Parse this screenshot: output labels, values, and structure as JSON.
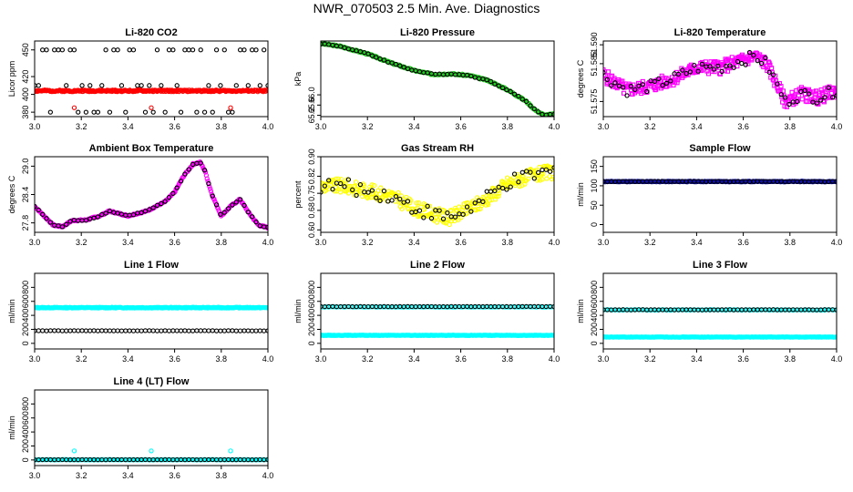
{
  "figure_title": "NWR_070503  2.5 Min. Ave. Diagnostics",
  "colors": {
    "black": "#000000",
    "red": "#ff0000",
    "green": "#22cc22",
    "magenta": "#ff00ff",
    "yellow": "#ffff00",
    "blue": "#1010aa",
    "cyan": "#00ffff"
  },
  "chart_data": [
    {
      "type": "scatter",
      "title": "Li-820 CO2",
      "ylabel": "Licor ppm",
      "xlim": [
        3.0,
        4.0
      ],
      "ylim": [
        375,
        460
      ],
      "xticks": [
        "3.0",
        "3.2",
        "3.4",
        "3.6",
        "3.8",
        "4.0"
      ],
      "yticks": [
        "380",
        "400",
        "420",
        "450"
      ],
      "series": [
        {
          "name": "primary",
          "color": "#000000",
          "shape": "circle",
          "mode": "spikes",
          "levels": [
            380,
            410,
            450
          ],
          "count": 60,
          "seed": 1
        },
        {
          "name": "secondary",
          "color": "#ff0000",
          "shape": "circle",
          "mode": "dense",
          "base": 404,
          "noise": 1.0,
          "count": 300,
          "seed": 2
        },
        {
          "name": "secondary-spikes",
          "color": "#ff0000",
          "shape": "circle",
          "mode": "points",
          "x": [
            3.17,
            3.5,
            3.84
          ],
          "y": [
            385,
            385,
            385
          ]
        }
      ]
    },
    {
      "type": "scatter",
      "title": "Li-820 Pressure",
      "ylabel": "kPa",
      "xlim": [
        3.0,
        4.0
      ],
      "ylim": [
        65.15,
        68.1
      ],
      "xticks": [
        "3.0",
        "3.2",
        "3.4",
        "3.6",
        "3.8",
        "4.0"
      ],
      "yticks": [
        "65.2",
        "65.6",
        "66.0"
      ],
      "series": [
        {
          "name": "secondary",
          "color": "#22cc22",
          "shape": "circle",
          "mode": "curve",
          "kx": [
            3.0,
            3.08,
            3.2,
            3.3,
            3.4,
            3.48,
            3.56,
            3.64,
            3.72,
            3.8,
            3.88,
            3.92,
            3.96,
            4.0
          ],
          "ky": [
            68.0,
            67.9,
            67.6,
            67.25,
            66.95,
            66.8,
            66.82,
            66.75,
            66.55,
            66.2,
            65.75,
            65.4,
            65.2,
            65.25
          ],
          "noise": 0.03,
          "count": 260,
          "seed": 3
        },
        {
          "name": "primary",
          "color": "#000000",
          "shape": "circle",
          "mode": "curve",
          "kx": [
            3.0,
            3.08,
            3.2,
            3.3,
            3.4,
            3.48,
            3.56,
            3.64,
            3.72,
            3.8,
            3.88,
            3.92,
            3.96,
            4.0
          ],
          "ky": [
            68.0,
            67.9,
            67.6,
            67.25,
            66.95,
            66.8,
            66.82,
            66.75,
            66.55,
            66.2,
            65.75,
            65.4,
            65.2,
            65.25
          ],
          "noise": 0.02,
          "count": 60,
          "seed": 4
        }
      ]
    },
    {
      "type": "scatter",
      "title": "Li-820 Temperature",
      "ylabel": "degrees C",
      "xlim": [
        3.0,
        4.0
      ],
      "ylim": [
        51.571,
        51.591
      ],
      "xticks": [
        "3.0",
        "3.2",
        "3.4",
        "3.6",
        "3.8",
        "4.0"
      ],
      "yticks": [
        "51.575",
        "51.585",
        "51.590"
      ],
      "series": [
        {
          "name": "secondary",
          "color": "#ff00ff",
          "shape": "square",
          "mode": "curve",
          "kx": [
            3.0,
            3.1,
            3.2,
            3.3,
            3.4,
            3.5,
            3.6,
            3.65,
            3.7,
            3.78,
            3.85,
            3.92,
            4.0
          ],
          "ky": [
            51.582,
            51.578,
            51.579,
            51.581,
            51.584,
            51.584,
            51.586,
            51.587,
            51.585,
            51.575,
            51.577,
            51.576,
            51.578
          ],
          "noise": 0.0018,
          "count": 320,
          "seed": 5
        },
        {
          "name": "primary",
          "color": "#000000",
          "shape": "circle",
          "mode": "curve",
          "kx": [
            3.0,
            3.1,
            3.2,
            3.3,
            3.4,
            3.5,
            3.6,
            3.65,
            3.7,
            3.78,
            3.85,
            3.92,
            4.0
          ],
          "ky": [
            51.582,
            51.578,
            51.579,
            51.581,
            51.584,
            51.584,
            51.586,
            51.587,
            51.585,
            51.575,
            51.577,
            51.576,
            51.578
          ],
          "noise": 0.0015,
          "count": 60,
          "seed": 6
        }
      ]
    },
    {
      "type": "scatter",
      "title": "Ambient Box Temperature",
      "ylabel": "degrees C",
      "xlim": [
        3.0,
        4.0
      ],
      "ylim": [
        27.6,
        29.2
      ],
      "xticks": [
        "3.0",
        "3.2",
        "3.4",
        "3.6",
        "3.8",
        "4.0"
      ],
      "yticks": [
        "27.8",
        "28.4",
        "29.0"
      ],
      "series": [
        {
          "name": "secondary",
          "color": "#ff00ff",
          "shape": "circle",
          "mode": "curve",
          "kx": [
            3.0,
            3.03,
            3.08,
            3.12,
            3.16,
            3.22,
            3.28,
            3.32,
            3.36,
            3.4,
            3.48,
            3.56,
            3.6,
            3.64,
            3.68,
            3.71,
            3.73,
            3.76,
            3.8,
            3.84,
            3.88,
            3.92,
            3.96,
            4.0
          ],
          "ky": [
            28.15,
            28.0,
            27.75,
            27.72,
            27.85,
            27.86,
            27.95,
            28.05,
            28.0,
            27.95,
            28.05,
            28.25,
            28.45,
            28.8,
            29.05,
            29.08,
            28.9,
            28.4,
            27.95,
            28.15,
            28.3,
            28.0,
            27.75,
            27.7
          ],
          "noise": 0.015,
          "count": 300,
          "seed": 7
        },
        {
          "name": "primary",
          "color": "#000000",
          "shape": "circle",
          "mode": "curve",
          "kx": [
            3.0,
            3.03,
            3.08,
            3.12,
            3.16,
            3.22,
            3.28,
            3.32,
            3.36,
            3.4,
            3.48,
            3.56,
            3.6,
            3.64,
            3.68,
            3.71,
            3.73,
            3.76,
            3.8,
            3.84,
            3.88,
            3.92,
            3.96,
            4.0
          ],
          "ky": [
            28.15,
            28.0,
            27.75,
            27.72,
            27.85,
            27.86,
            27.95,
            28.05,
            28.0,
            27.95,
            28.05,
            28.25,
            28.45,
            28.8,
            29.05,
            29.08,
            28.9,
            28.4,
            27.95,
            28.15,
            28.3,
            28.0,
            27.75,
            27.7
          ],
          "noise": 0.01,
          "count": 60,
          "seed": 8
        }
      ]
    },
    {
      "type": "scatter",
      "title": "Gas Stream RH",
      "ylabel": "percent",
      "xlim": [
        3.0,
        4.0
      ],
      "ylim": [
        0.59,
        0.9
      ],
      "xticks": [
        "3.0",
        "3.2",
        "3.4",
        "3.6",
        "3.8",
        "4.0"
      ],
      "yticks": [
        "0.60",
        "0.68",
        "0.75",
        "0.82",
        "0.90"
      ],
      "series": [
        {
          "name": "secondary",
          "color": "#ffff00",
          "shape": "circle",
          "mode": "curve",
          "kx": [
            3.0,
            3.1,
            3.2,
            3.3,
            3.4,
            3.5,
            3.55,
            3.6,
            3.7,
            3.8,
            3.9,
            4.0
          ],
          "ky": [
            0.78,
            0.78,
            0.76,
            0.74,
            0.69,
            0.66,
            0.65,
            0.67,
            0.72,
            0.79,
            0.82,
            0.84
          ],
          "noise": 0.03,
          "count": 320,
          "seed": 9
        },
        {
          "name": "primary",
          "color": "#000000",
          "shape": "circle",
          "mode": "curve",
          "kx": [
            3.0,
            3.1,
            3.2,
            3.3,
            3.4,
            3.5,
            3.55,
            3.6,
            3.7,
            3.8,
            3.9,
            4.0
          ],
          "ky": [
            0.78,
            0.78,
            0.76,
            0.74,
            0.69,
            0.66,
            0.65,
            0.67,
            0.72,
            0.79,
            0.82,
            0.84
          ],
          "noise": 0.03,
          "count": 60,
          "seed": 10
        }
      ]
    },
    {
      "type": "scatter",
      "title": "Sample Flow",
      "ylabel": "ml/min",
      "xlim": [
        3.0,
        4.0
      ],
      "ylim": [
        -20,
        175
      ],
      "xticks": [
        "3.0",
        "3.2",
        "3.4",
        "3.6",
        "3.8",
        "4.0"
      ],
      "yticks": [
        "0",
        "50",
        "100",
        "150"
      ],
      "series": [
        {
          "name": "secondary",
          "color": "#1010aa",
          "shape": "circle",
          "mode": "dense",
          "base": 111,
          "noise": 1.0,
          "count": 300,
          "seed": 11
        },
        {
          "name": "primary",
          "color": "#000000",
          "shape": "circle",
          "mode": "dense",
          "base": 111,
          "noise": 0.5,
          "count": 60,
          "seed": 12
        }
      ]
    },
    {
      "type": "scatter",
      "title": "Line 1 Flow",
      "ylabel": "ml/min",
      "xlim": [
        3.0,
        4.0
      ],
      "ylim": [
        -80,
        1000
      ],
      "xticks": [
        "3.0",
        "3.2",
        "3.4",
        "3.6",
        "3.8",
        "4.0"
      ],
      "yticks": [
        "0",
        "200",
        "400",
        "600",
        "800"
      ],
      "series": [
        {
          "name": "secondary",
          "color": "#00ffff",
          "shape": "circle",
          "mode": "dense",
          "base": 510,
          "noise": 6,
          "count": 300,
          "seed": 13
        },
        {
          "name": "primary",
          "color": "#000000",
          "shape": "circle",
          "mode": "dense",
          "base": 180,
          "noise": 2,
          "count": 60,
          "seed": 14
        }
      ]
    },
    {
      "type": "scatter",
      "title": "Line 2 Flow",
      "ylabel": "ml/min",
      "xlim": [
        3.0,
        4.0
      ],
      "ylim": [
        -80,
        1000
      ],
      "xticks": [
        "3.0",
        "3.2",
        "3.4",
        "3.6",
        "3.8",
        "4.0"
      ],
      "yticks": [
        "0",
        "200",
        "400",
        "600",
        "800"
      ],
      "series": [
        {
          "name": "secondary",
          "color": "#00ffff",
          "shape": "circle",
          "mode": "dense",
          "base": 115,
          "noise": 3,
          "count": 300,
          "seed": 15
        },
        {
          "name": "secondary-upper",
          "color": "#00ffff",
          "shape": "circle",
          "mode": "dense",
          "base": 520,
          "noise": 4,
          "count": 120,
          "seed": 16
        },
        {
          "name": "primary",
          "color": "#000000",
          "shape": "circle",
          "mode": "dense",
          "base": 525,
          "noise": 2,
          "count": 60,
          "seed": 17
        }
      ]
    },
    {
      "type": "scatter",
      "title": "Line 3 Flow",
      "ylabel": "ml/min",
      "xlim": [
        3.0,
        4.0
      ],
      "ylim": [
        -80,
        1000
      ],
      "xticks": [
        "3.0",
        "3.2",
        "3.4",
        "3.6",
        "3.8",
        "4.0"
      ],
      "yticks": [
        "0",
        "200",
        "400",
        "600",
        "800"
      ],
      "series": [
        {
          "name": "secondary",
          "color": "#00ffff",
          "shape": "circle",
          "mode": "dense",
          "base": 90,
          "noise": 3,
          "count": 300,
          "seed": 18
        },
        {
          "name": "secondary-upper",
          "color": "#00ffff",
          "shape": "circle",
          "mode": "dense",
          "base": 478,
          "noise": 4,
          "count": 100,
          "seed": 19
        },
        {
          "name": "primary",
          "color": "#000000",
          "shape": "circle",
          "mode": "dense",
          "base": 480,
          "noise": 2,
          "count": 60,
          "seed": 20
        }
      ]
    },
    {
      "type": "scatter",
      "title": "Line 4 (LT) Flow",
      "ylabel": "ml/min",
      "xlim": [
        3.0,
        4.0
      ],
      "ylim": [
        -80,
        1000
      ],
      "xticks": [
        "3.0",
        "3.2",
        "3.4",
        "3.6",
        "3.8",
        "4.0"
      ],
      "yticks": [
        "0",
        "200",
        "400",
        "600",
        "800"
      ],
      "series": [
        {
          "name": "secondary",
          "color": "#00ffff",
          "shape": "circle",
          "mode": "dense",
          "base": 4,
          "noise": 2,
          "count": 300,
          "seed": 21
        },
        {
          "name": "secondary-spikes",
          "color": "#00ffff",
          "shape": "circle",
          "mode": "points",
          "x": [
            3.17,
            3.5,
            3.84
          ],
          "y": [
            130,
            130,
            130
          ]
        },
        {
          "name": "primary",
          "color": "#000000",
          "shape": "circle",
          "mode": "dense",
          "base": 4,
          "noise": 1,
          "count": 60,
          "seed": 22
        }
      ]
    }
  ]
}
